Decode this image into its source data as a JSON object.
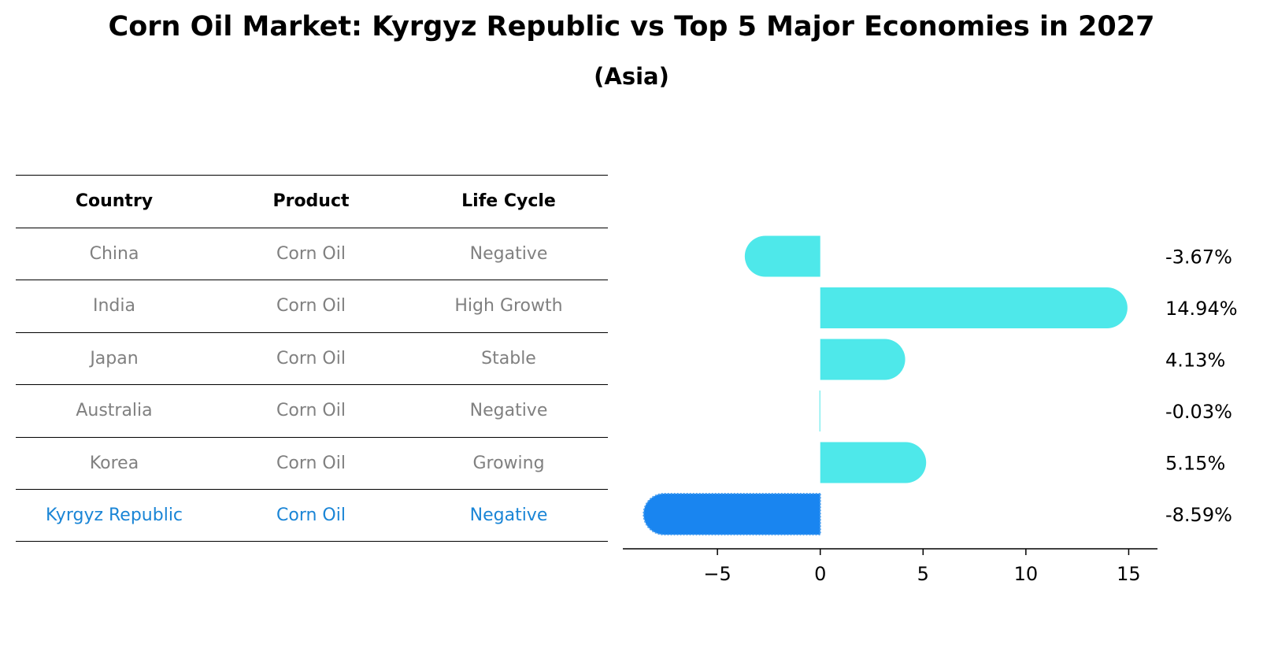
{
  "title": "Corn Oil Market: Kyrgyz Republic vs Top 5 Major Economies in 2027",
  "subtitle": "(Asia)",
  "table": {
    "headers": [
      "Country",
      "Product",
      "Life Cycle"
    ],
    "rows": [
      {
        "country": "China",
        "product": "Corn Oil",
        "life_cycle": "Negative"
      },
      {
        "country": "India",
        "product": "Corn Oil",
        "life_cycle": "High Growth"
      },
      {
        "country": "Japan",
        "product": "Corn Oil",
        "life_cycle": "Stable"
      },
      {
        "country": "Australia",
        "product": "Corn Oil",
        "life_cycle": "Negative"
      },
      {
        "country": "Korea",
        "product": "Corn Oil",
        "life_cycle": "Growing"
      },
      {
        "country": "Kyrgyz Republic",
        "product": "Corn Oil",
        "life_cycle": "Negative"
      }
    ]
  },
  "colors": {
    "bar": "#4ee8ea",
    "highlight_bar": "#1985f0",
    "highlight_text": "#1a85d6",
    "muted_text": "#808080"
  },
  "chart_data": {
    "type": "bar",
    "orientation": "horizontal",
    "categories": [
      "China",
      "India",
      "Japan",
      "Australia",
      "Korea",
      "Kyrgyz Republic"
    ],
    "values": [
      -3.67,
      14.94,
      4.13,
      -0.03,
      5.15,
      -8.59
    ],
    "value_labels": [
      "-3.67%",
      "14.94%",
      "4.13%",
      "-0.03%",
      "5.15%",
      "-8.59%"
    ],
    "highlight_category": "Kyrgyz Republic",
    "xlim": [
      -9.6,
      16.4
    ],
    "xticks": [
      -5,
      0,
      5,
      10,
      15
    ],
    "xtick_labels": [
      "−5",
      "0",
      "5",
      "10",
      "15"
    ],
    "grid": false
  }
}
